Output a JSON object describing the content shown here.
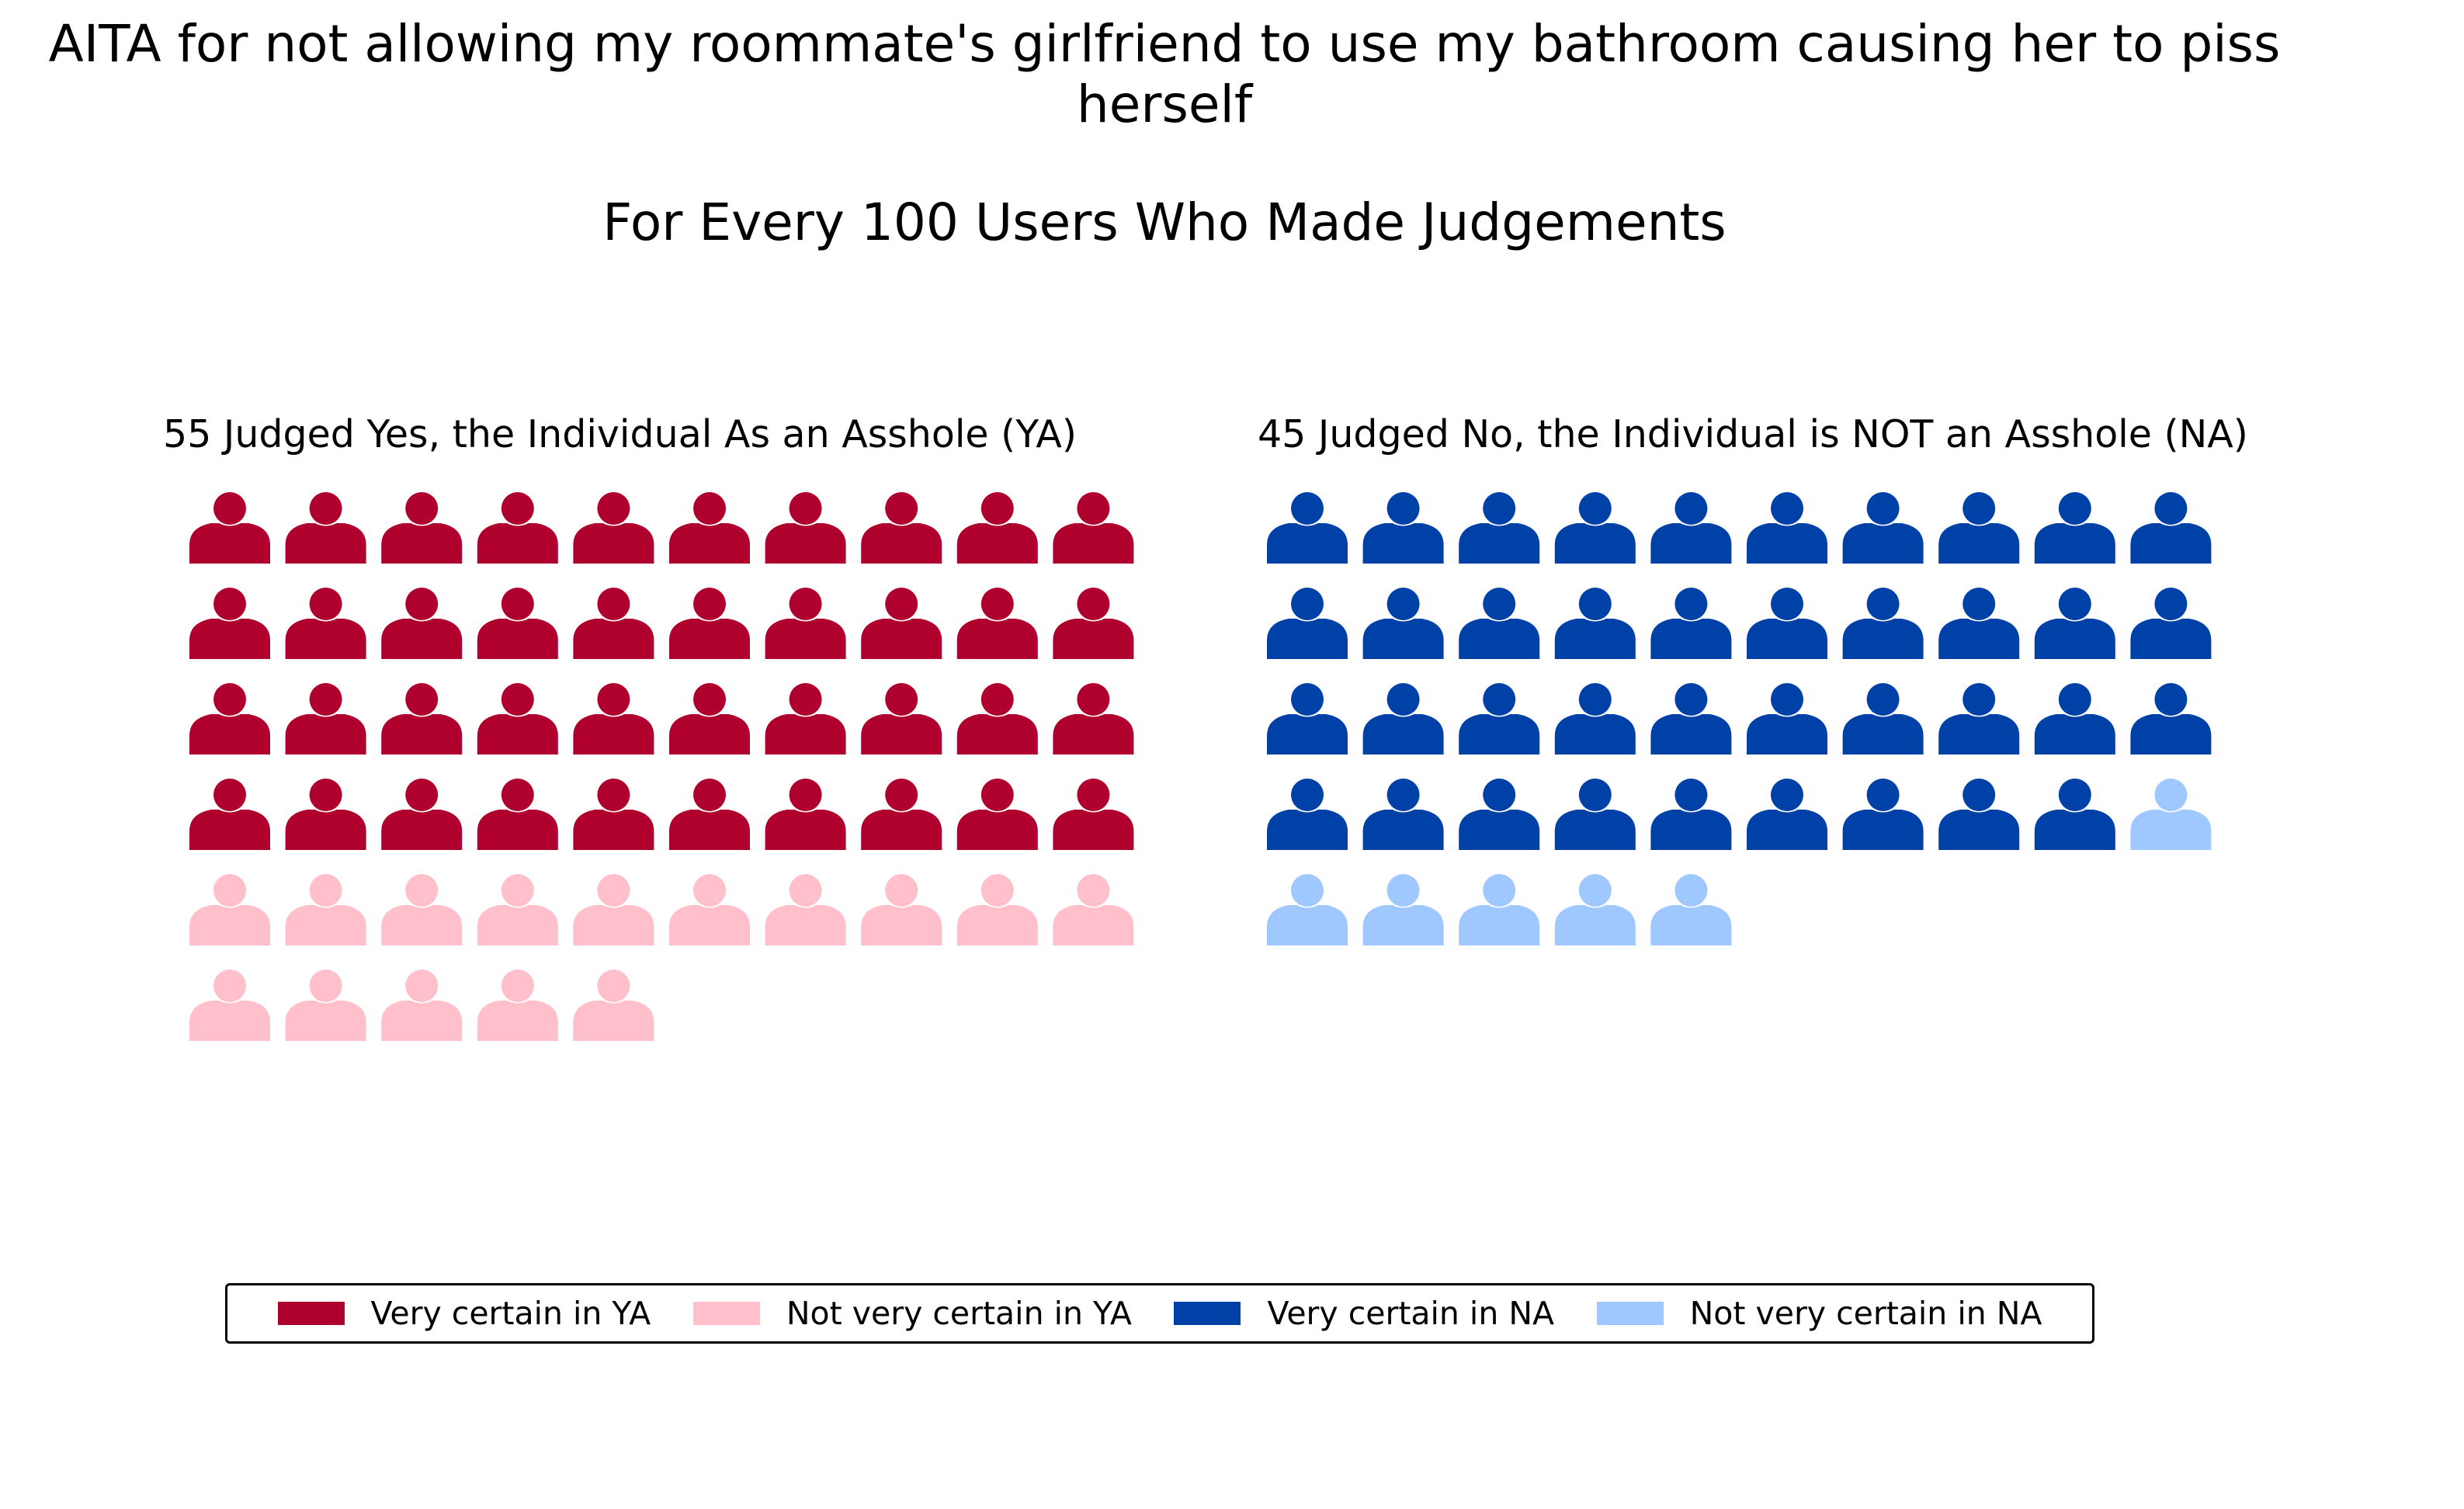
{
  "title": "AITA for not allowing my roommate's girlfriend to use my bathroom causing her to piss herself",
  "subtitle": "For Every 100 Users Who Made Judgements",
  "colors": {
    "very_certain_ya": "#b0002e",
    "not_very_certain_ya": "#ffc0cb",
    "very_certain_na": "#0041a8",
    "not_very_certain_na": "#9ec8ff"
  },
  "chart_data": {
    "type": "pictograph",
    "icon": "person-icon",
    "total": 100,
    "icons_per_row": 10,
    "panels": [
      {
        "title": "55 Judged Yes, the Individual As an Asshole (YA)",
        "total": 55,
        "groups": [
          {
            "label": "Very certain in YA",
            "count": 40,
            "color_key": "very_certain_ya"
          },
          {
            "label": "Not very certain in YA",
            "count": 15,
            "color_key": "not_very_certain_ya"
          }
        ]
      },
      {
        "title": "45 Judged No, the Individual is NOT an Asshole (NA)",
        "total": 45,
        "groups": [
          {
            "label": "Very certain in NA",
            "count": 39,
            "color_key": "very_certain_na"
          },
          {
            "label": "Not very certain in NA",
            "count": 6,
            "color_key": "not_very_certain_na"
          }
        ]
      }
    ],
    "legend": {
      "position": "bottom-center",
      "entries": [
        {
          "label": "Very certain in YA",
          "color_key": "very_certain_ya"
        },
        {
          "label": "Not very certain in YA",
          "color_key": "not_very_certain_ya"
        },
        {
          "label": "Very certain in NA",
          "color_key": "very_certain_na"
        },
        {
          "label": "Not very certain in NA",
          "color_key": "not_very_certain_na"
        }
      ]
    }
  }
}
